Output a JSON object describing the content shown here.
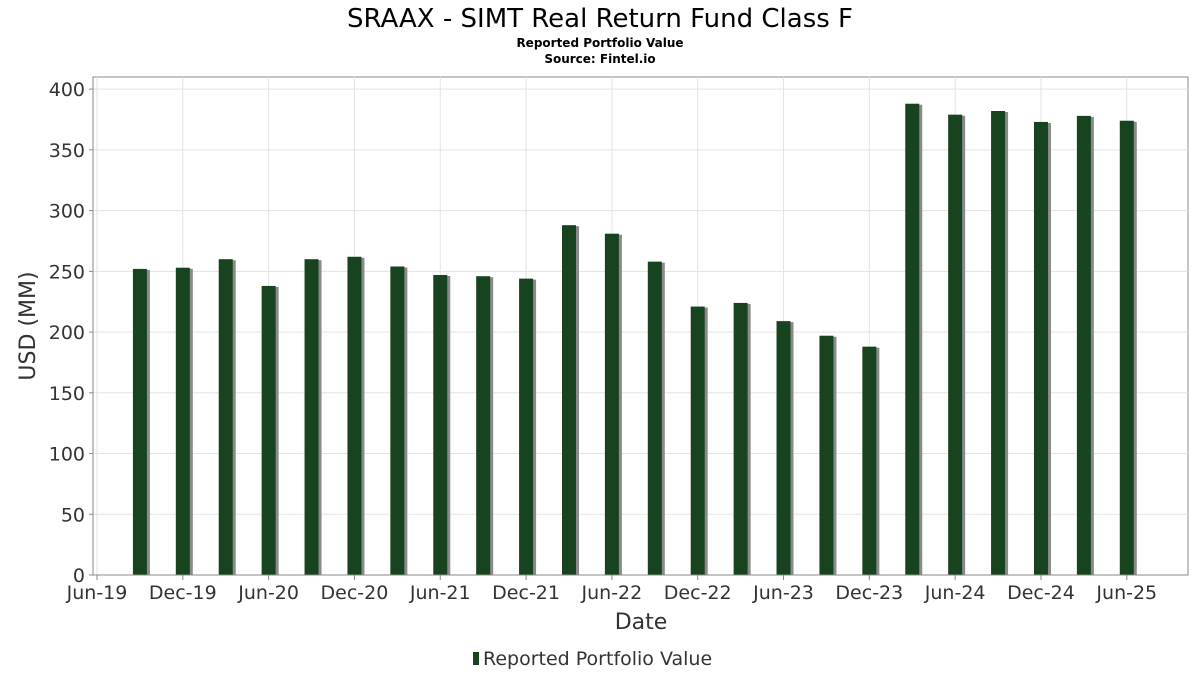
{
  "chart_data": {
    "type": "bar",
    "title": "SRAAX - SIMT Real Return Fund Class F",
    "subtitle": "Reported Portfolio Value",
    "source": "Source: Fintel.io",
    "xlabel": "Date",
    "ylabel": "USD (MM)",
    "ylim": [
      0,
      410
    ],
    "yticks": [
      0,
      50,
      100,
      150,
      200,
      250,
      300,
      350,
      400
    ],
    "xlim": [
      "2019-06",
      "2025-10"
    ],
    "xticks": [
      {
        "label": "Jun-19",
        "date": "2019-06"
      },
      {
        "label": "Dec-19",
        "date": "2019-12"
      },
      {
        "label": "Jun-20",
        "date": "2020-06"
      },
      {
        "label": "Dec-20",
        "date": "2020-12"
      },
      {
        "label": "Jun-21",
        "date": "2021-06"
      },
      {
        "label": "Dec-21",
        "date": "2021-12"
      },
      {
        "label": "Jun-22",
        "date": "2022-06"
      },
      {
        "label": "Dec-22",
        "date": "2022-12"
      },
      {
        "label": "Jun-23",
        "date": "2023-06"
      },
      {
        "label": "Dec-23",
        "date": "2023-12"
      },
      {
        "label": "Jun-24",
        "date": "2024-06"
      },
      {
        "label": "Dec-24",
        "date": "2024-12"
      },
      {
        "label": "Jun-25",
        "date": "2025-06"
      }
    ],
    "grid": true,
    "legend": "bottom",
    "series": [
      {
        "name": "Reported Portfolio Value",
        "color": "#17431f",
        "points": [
          {
            "x": "2019-09",
            "y": 252
          },
          {
            "x": "2019-12",
            "y": 253
          },
          {
            "x": "2020-03",
            "y": 260
          },
          {
            "x": "2020-06",
            "y": 238
          },
          {
            "x": "2020-09",
            "y": 260
          },
          {
            "x": "2020-12",
            "y": 262
          },
          {
            "x": "2021-03",
            "y": 254
          },
          {
            "x": "2021-06",
            "y": 247
          },
          {
            "x": "2021-09",
            "y": 246
          },
          {
            "x": "2021-12",
            "y": 244
          },
          {
            "x": "2022-03",
            "y": 288
          },
          {
            "x": "2022-06",
            "y": 281
          },
          {
            "x": "2022-09",
            "y": 258
          },
          {
            "x": "2022-12",
            "y": 221
          },
          {
            "x": "2023-03",
            "y": 224
          },
          {
            "x": "2023-06",
            "y": 209
          },
          {
            "x": "2023-09",
            "y": 197
          },
          {
            "x": "2023-12",
            "y": 188
          },
          {
            "x": "2024-03",
            "y": 388
          },
          {
            "x": "2024-06",
            "y": 379
          },
          {
            "x": "2024-09",
            "y": 382
          },
          {
            "x": "2024-12",
            "y": 373
          },
          {
            "x": "2025-03",
            "y": 378
          },
          {
            "x": "2025-06",
            "y": 374
          }
        ]
      }
    ]
  }
}
